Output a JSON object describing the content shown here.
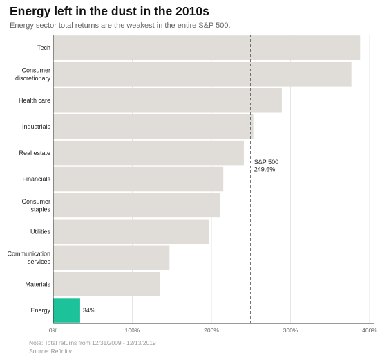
{
  "title": "Energy left in the dust in the 2010s",
  "subtitle": "Energy sector total returns are the weakest in the entire S&P 500.",
  "note": "Note: Total returns from 12/31/2009 - 12/13/2019",
  "source": "Source: Refinitiv",
  "chart_data": {
    "type": "bar",
    "orientation": "horizontal",
    "categories": [
      "Tech",
      "Consumer discretionary",
      "Health care",
      "Industrials",
      "Real estate",
      "Financials",
      "Consumer staples",
      "Utilities",
      "Communication services",
      "Materials",
      "Energy"
    ],
    "category_lines": [
      [
        "Tech"
      ],
      [
        "Consumer",
        "discretionary"
      ],
      [
        "Health care"
      ],
      [
        "Industrials"
      ],
      [
        "Real estate"
      ],
      [
        "Financials"
      ],
      [
        "Consumer",
        "staples"
      ],
      [
        "Utilities"
      ],
      [
        "Communication",
        "services"
      ],
      [
        "Materials"
      ],
      [
        "Energy"
      ]
    ],
    "values": [
      388,
      377,
      289,
      253,
      241,
      215,
      211,
      197,
      147,
      135,
      34
    ],
    "highlight": {
      "category": "Energy",
      "label": "34%"
    },
    "reference_line": {
      "value": 249.6,
      "label": [
        "S&P 500",
        "249.6%"
      ]
    },
    "xlim": [
      0,
      400
    ],
    "xticks": [
      "0%",
      "100%",
      "200%",
      "300%",
      "400%"
    ],
    "xtick_values": [
      0,
      100,
      200,
      300,
      400
    ],
    "grid": true,
    "colors": {
      "bar": "#e0ddd8",
      "highlight": "#1bc29a",
      "grid": "#e6e6e6",
      "reference": "#555555",
      "axis": "#333333"
    }
  }
}
